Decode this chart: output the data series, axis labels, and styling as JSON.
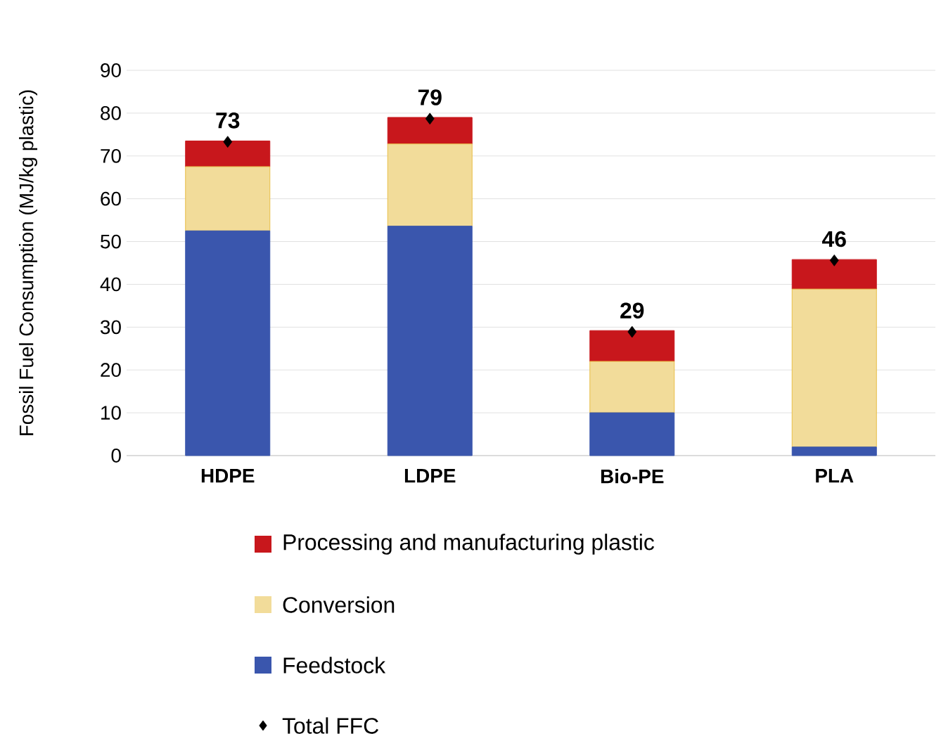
{
  "chart_data": {
    "type": "bar",
    "stacked": true,
    "ylabel": "Fossil Fuel Consumption (MJ/kg plastic)",
    "categories": [
      "HDPE",
      "LDPE",
      "Bio-PE",
      "PLA"
    ],
    "series": [
      {
        "name": "Feedstock",
        "color": "#3a56ad",
        "values": [
          52.5,
          53.6,
          10.0,
          2.0
        ]
      },
      {
        "name": "Conversion",
        "color": "#f2dc9a",
        "values": [
          15.0,
          19.2,
          12.0,
          36.9
        ]
      },
      {
        "name": "Processing and manufacturing plastic",
        "color": "#c8171c",
        "values": [
          6.0,
          6.2,
          7.2,
          6.9
        ]
      },
      {
        "name": "Total FFC",
        "type": "scatter",
        "color": "#000000",
        "marker": "diamond",
        "x": [
          "HDPE",
          "LDPE",
          "Bio-PE",
          "PLA"
        ],
        "values": [
          73.3,
          78.7,
          28.9,
          45.6
        ],
        "value_labels": [
          "73",
          "79",
          "29",
          "46"
        ]
      }
    ],
    "ylim": [
      0,
      90
    ],
    "yticks": [
      0,
      10,
      20,
      30,
      40,
      50,
      60,
      70,
      80,
      90
    ],
    "grid": "y",
    "legend": "bottom"
  }
}
